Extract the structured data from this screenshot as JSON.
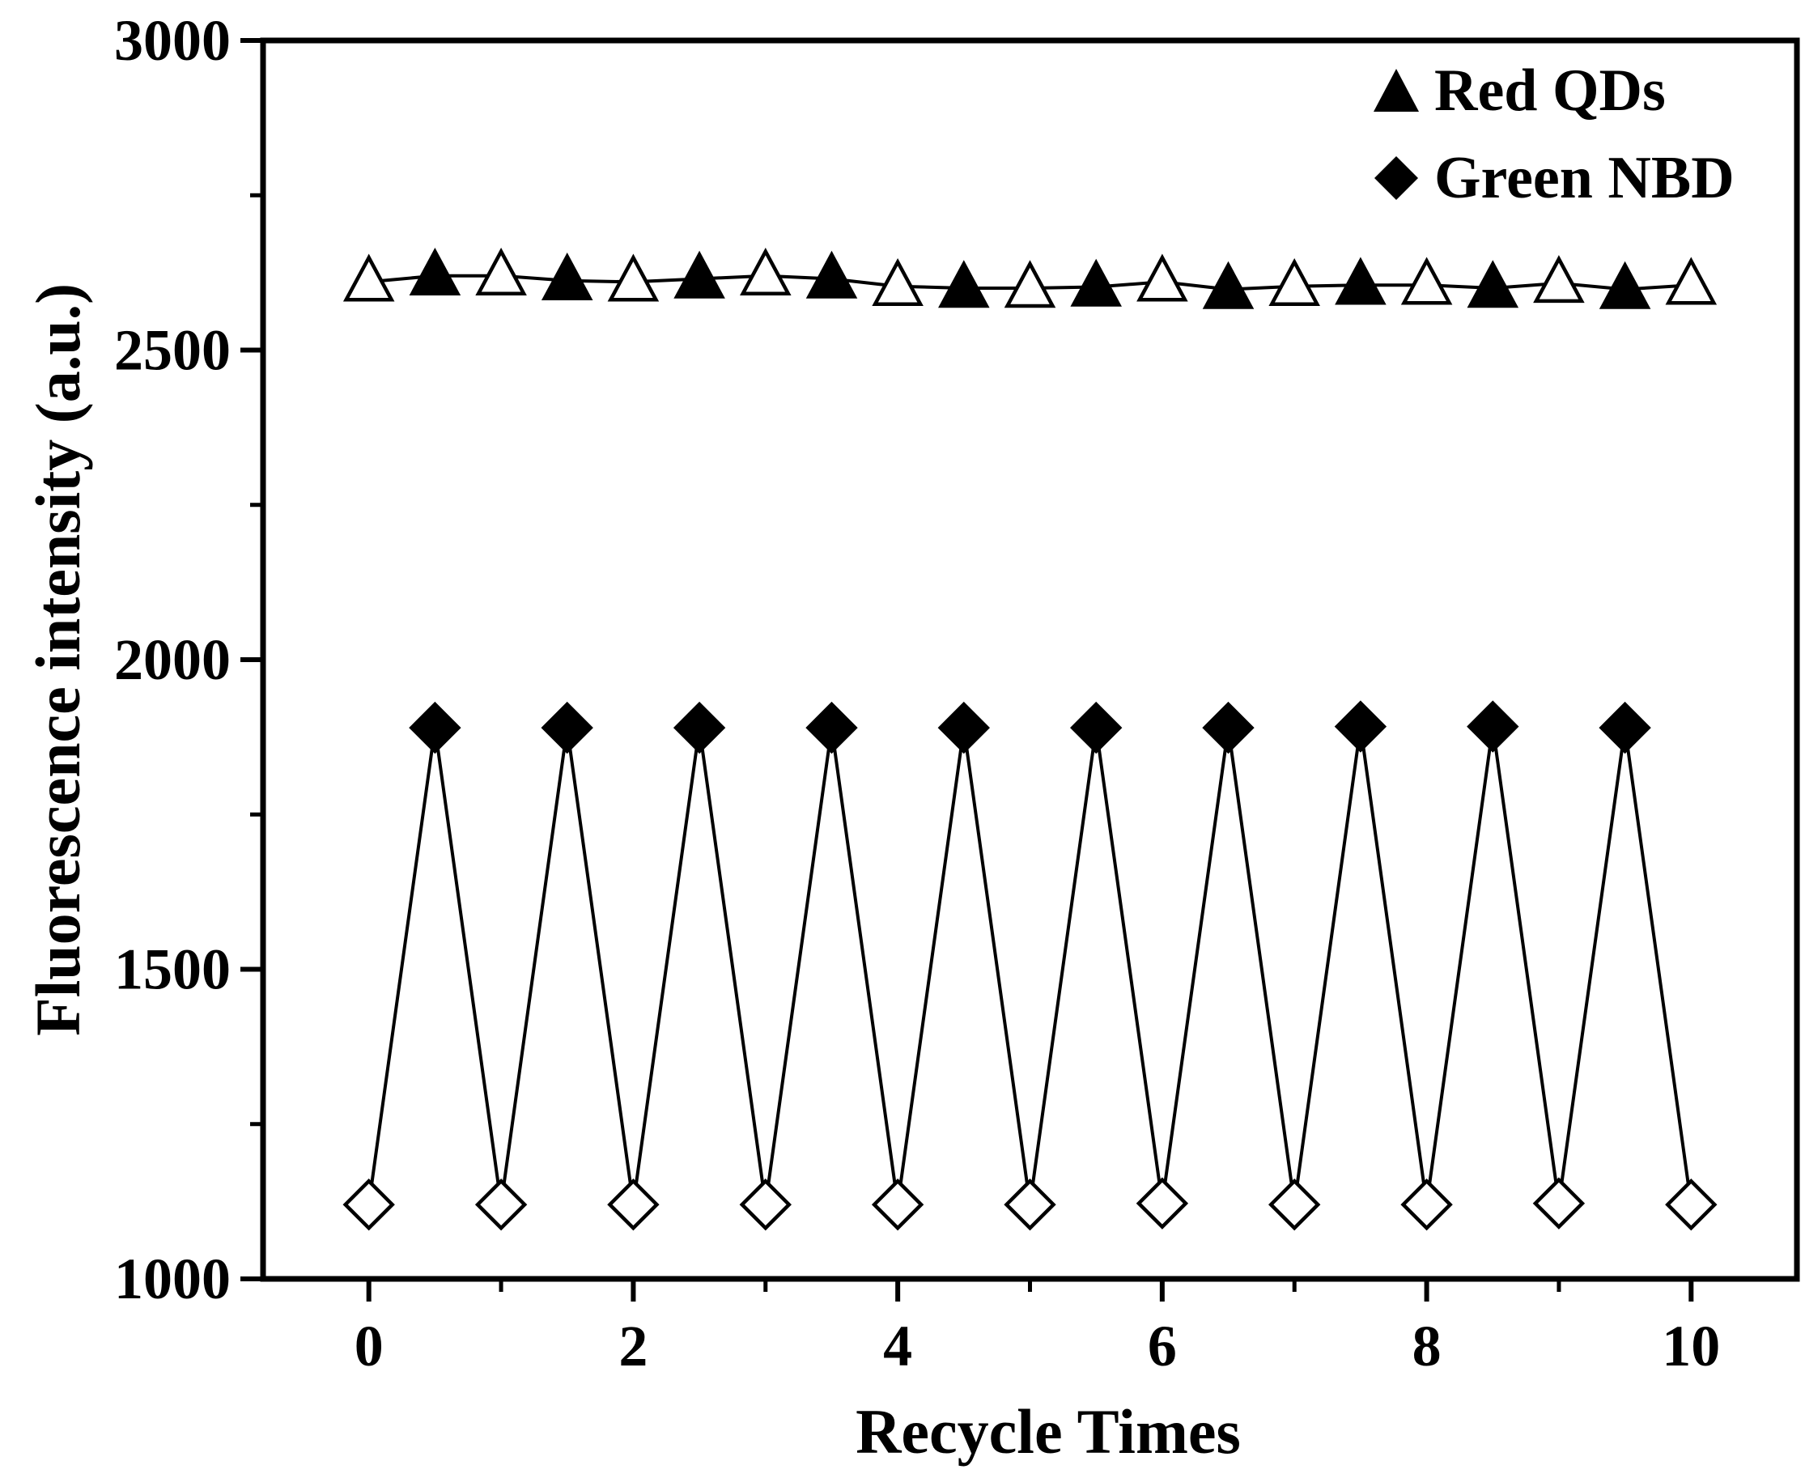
{
  "chart_data": {
    "type": "line",
    "title": "",
    "xlabel": "Recycle Times",
    "ylabel": "Fluorescence intensity (a.u.)",
    "xlim": [
      -0.8,
      10.8
    ],
    "ylim": [
      1000,
      3000
    ],
    "xticks": [
      0,
      2,
      4,
      6,
      8,
      10
    ],
    "yticks": [
      1000,
      1500,
      2000,
      2500,
      3000
    ],
    "y_minor_ticks": [
      1250,
      1750,
      2250,
      2750
    ],
    "grid": false,
    "legend_position": "top-right",
    "series": [
      {
        "name": "Red QDs",
        "marker": "triangle",
        "x": [
          0,
          0.5,
          1,
          1.5,
          2,
          2.5,
          3,
          3.5,
          4,
          4.5,
          5,
          5.5,
          6,
          6.5,
          7,
          7.5,
          8,
          8.5,
          9,
          9.5,
          10
        ],
        "values": [
          2610,
          2620,
          2620,
          2612,
          2610,
          2615,
          2620,
          2615,
          2603,
          2600,
          2600,
          2602,
          2610,
          2598,
          2603,
          2605,
          2605,
          2600,
          2608,
          2598,
          2605
        ],
        "filled": [
          false,
          true,
          false,
          true,
          false,
          true,
          false,
          true,
          false,
          true,
          false,
          true,
          false,
          true,
          false,
          true,
          false,
          true,
          false,
          true,
          false
        ]
      },
      {
        "name": "Green NBD",
        "marker": "diamond",
        "x": [
          0,
          0.5,
          1,
          1.5,
          2,
          2.5,
          3,
          3.5,
          4,
          4.5,
          5,
          5.5,
          6,
          6.5,
          7,
          7.5,
          8,
          8.5,
          9,
          9.5,
          10
        ],
        "values": [
          1120,
          1890,
          1120,
          1890,
          1120,
          1890,
          1120,
          1890,
          1120,
          1890,
          1120,
          1890,
          1122,
          1890,
          1120,
          1892,
          1120,
          1892,
          1122,
          1890,
          1120
        ],
        "filled": [
          false,
          true,
          false,
          true,
          false,
          true,
          false,
          true,
          false,
          true,
          false,
          true,
          false,
          true,
          false,
          true,
          false,
          true,
          false,
          true,
          false
        ]
      }
    ]
  }
}
